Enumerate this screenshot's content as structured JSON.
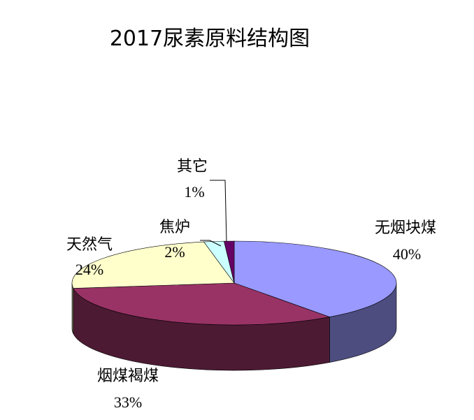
{
  "chart_data": {
    "type": "pie",
    "title": "2017尿素原料结构图",
    "categories": [
      "无烟块煤",
      "烟煤褐煤",
      "天然气",
      "焦炉",
      "其它"
    ],
    "values": [
      40,
      33,
      24,
      2,
      1
    ],
    "value_labels": [
      "40%",
      "33%",
      "24%",
      "2%",
      "1%"
    ],
    "colors": [
      "#9999ff",
      "#993366",
      "#ffffcc",
      "#ccffff",
      "#660066"
    ]
  }
}
